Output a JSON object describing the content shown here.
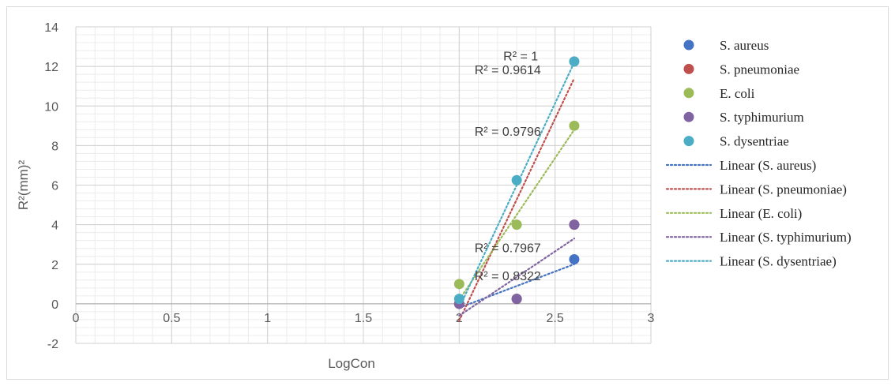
{
  "chart_data": {
    "type": "scatter",
    "title": "",
    "xlabel": "LogCon",
    "ylabel": "R²(mm)²",
    "xlim": [
      0,
      3
    ],
    "ylim": [
      -2,
      14
    ],
    "x_ticks": [
      0,
      0.5,
      1,
      1.5,
      2,
      2.5,
      3
    ],
    "x_tick_labels": [
      "0",
      "0.5",
      "1",
      "1.5",
      "2",
      "2.5",
      "3"
    ],
    "y_ticks": [
      -2,
      0,
      2,
      4,
      6,
      8,
      10,
      12,
      14
    ],
    "y_tick_labels": [
      "-2",
      "0",
      "2",
      "4",
      "6",
      "8",
      "10",
      "12",
      "14"
    ],
    "grid": true,
    "legend_position": "right",
    "x": [
      2,
      2.3,
      2.6
    ],
    "series": [
      {
        "name": "S. aureus",
        "color": "#4472C4",
        "values": [
          0,
          0.25,
          2.25
        ]
      },
      {
        "name": "S. pneumoniae",
        "color": "#C0504D",
        "values": [
          0,
          0.25,
          4
        ]
      },
      {
        "name": "E. coli",
        "color": "#9BBB59",
        "values": [
          1,
          4,
          9
        ]
      },
      {
        "name": "S. typhimurium",
        "color": "#8064A2",
        "values": [
          0,
          0.25,
          4
        ]
      },
      {
        "name": "S. dysentriae",
        "color": "#4BACC6",
        "values": [
          0.25,
          6.25,
          12.25
        ]
      }
    ],
    "trendlines": [
      {
        "name": "Linear (S. aureus)",
        "color": "#4472C4",
        "x": [
          2,
          2.6
        ],
        "y": [
          -0.2,
          2.0
        ]
      },
      {
        "name": "Linear (S. pneumoniae)",
        "color": "#C0504D",
        "x": [
          2,
          2.6
        ],
        "y": [
          -0.85,
          11.4
        ]
      },
      {
        "name": "Linear (E. coli)",
        "color": "#9BBB59",
        "x": [
          2,
          2.6
        ],
        "y": [
          0.2,
          8.8
        ]
      },
      {
        "name": "Linear (S. typhimurium)",
        "color": "#8064A2",
        "x": [
          2,
          2.6
        ],
        "y": [
          -0.6,
          3.3
        ]
      },
      {
        "name": "Linear (S. dysentriae)",
        "color": "#4BACC6",
        "x": [
          2,
          2.6
        ],
        "y": [
          -0.2,
          12.2
        ]
      }
    ],
    "annotations": [
      {
        "text": "R² = 1",
        "x": 2.23,
        "y": 12.3
      },
      {
        "text": "R² = 0.9614",
        "x": 2.08,
        "y": 11.6
      },
      {
        "text": "R² = 0.9796",
        "x": 2.08,
        "y": 8.5
      },
      {
        "text": "R² = 0.7967",
        "x": 2.08,
        "y": 2.6
      },
      {
        "text": "R² = 0.8322",
        "x": 2.08,
        "y": 1.2
      }
    ]
  }
}
